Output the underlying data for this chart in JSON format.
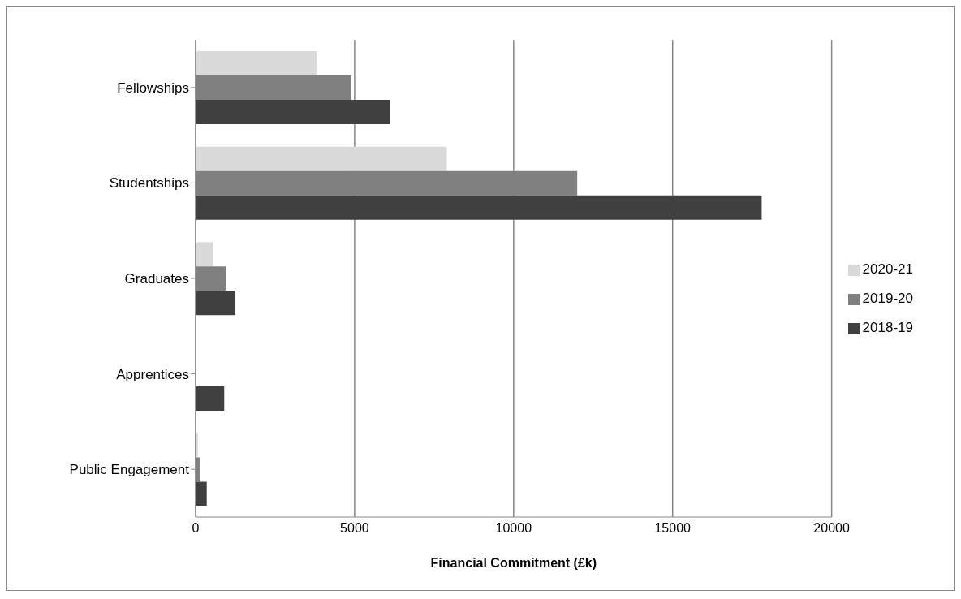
{
  "chart_data": {
    "type": "bar",
    "orientation": "horizontal",
    "xlabel": "Financial Commitment (£k)",
    "categories": [
      "Fellowships",
      "Studentships",
      "Graduates",
      "Apprentices",
      "Public Engagement"
    ],
    "series": [
      {
        "name": "2020-21",
        "color": "#d9d9d9",
        "values": [
          3800,
          7900,
          550,
          0,
          70
        ]
      },
      {
        "name": "2019-20",
        "color": "#808080",
        "values": [
          4900,
          12000,
          950,
          0,
          150
        ]
      },
      {
        "name": "2018-19",
        "color": "#404040",
        "values": [
          6100,
          17800,
          1250,
          900,
          350
        ]
      }
    ],
    "xlim": [
      0,
      20000
    ],
    "xticks": [
      0,
      5000,
      10000,
      15000,
      20000
    ],
    "grid": "x",
    "legend": "right"
  }
}
